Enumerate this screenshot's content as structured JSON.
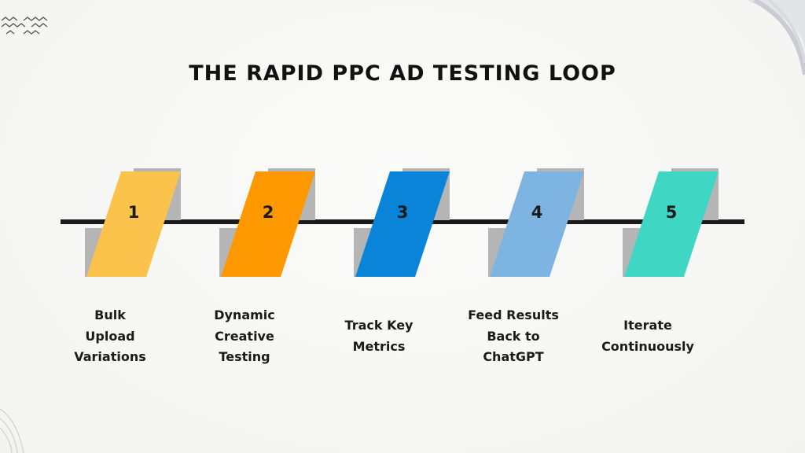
{
  "title": "THE RAPID PPC AD TESTING LOOP",
  "colors": {
    "line": "#1a1a1a",
    "shadow": "#b5b5b5",
    "step1": "#fbc24c",
    "step2": "#fd9800",
    "step3": "#0a84d8",
    "step4": "#7eb4e2",
    "step5": "#3fd6c4"
  },
  "steps": [
    {
      "number": "1",
      "label": "Bulk\nUpload\nVariations"
    },
    {
      "number": "2",
      "label": "Dynamic\nCreative\nTesting"
    },
    {
      "number": "3",
      "label": "Track Key\nMetrics"
    },
    {
      "number": "4",
      "label": "Feed Results\nBack to\nChatGPT"
    },
    {
      "number": "5",
      "label": "Iterate\nContinuously"
    }
  ]
}
